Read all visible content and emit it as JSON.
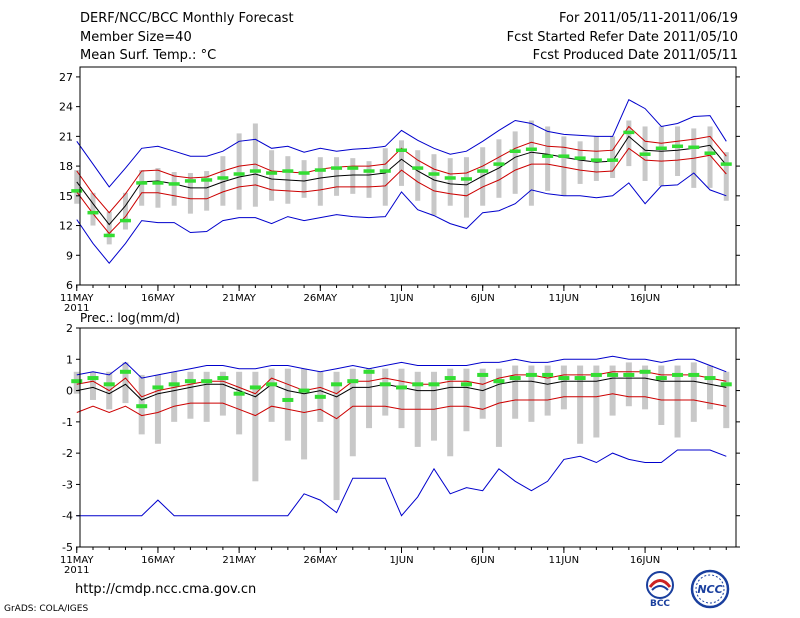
{
  "header": {
    "title": "DERF/NCC/BCC Monthly Forecast",
    "member_size": "Member Size=40",
    "forecast_period": "For 2011/05/11-2011/06/19",
    "started_date": "Fcst Started Refer Date 2011/05/10",
    "produced_date": "Fcst Produced Date 2011/05/11"
  },
  "footer": {
    "url": "http://cmdp.ncc.cma.gov.cn",
    "credit": "GrADS: COLA/IGES",
    "logo_left": "BCC",
    "logo_right": "NCC"
  },
  "colors": {
    "envelope": "#0000cc",
    "spread": "#cc0000",
    "mean": "#000000",
    "box": "#c8c8c8",
    "marker": "#33dd33"
  },
  "chart_data": [
    {
      "type": "line",
      "title": "Mean Surf. Temp.: °C",
      "x_tick_labels": [
        "11MAY",
        "16MAY",
        "21MAY",
        "26MAY",
        "1JUN",
        "6JUN",
        "11JUN",
        "16JUN"
      ],
      "x_tick_days": [
        1,
        6,
        11,
        16,
        21,
        26,
        31,
        36
      ],
      "year_label": "2011",
      "xlim": [
        0.2,
        40.6
      ],
      "ylim": [
        6,
        28
      ],
      "y_ticks": [
        6,
        9,
        12,
        15,
        18,
        21,
        24,
        27
      ],
      "series": [
        {
          "name": "max",
          "color_key": "envelope",
          "values": [
            20.5,
            18.2,
            15.9,
            17.8,
            19.8,
            20.0,
            19.5,
            19.0,
            19.0,
            19.5,
            20.5,
            20.7,
            19.8,
            20.0,
            19.4,
            19.8,
            19.5,
            19.7,
            19.8,
            20.0,
            21.6,
            20.6,
            19.8,
            19.2,
            19.5,
            20.5,
            21.6,
            22.6,
            22.3,
            21.5,
            21.2,
            21.1,
            21.0,
            21.0,
            24.7,
            23.8,
            22.0,
            22.3,
            23.0,
            23.1,
            20.5
          ]
        },
        {
          "name": "upper",
          "color_key": "spread",
          "values": [
            17.5,
            15.2,
            13.3,
            15.2,
            17.5,
            17.6,
            17.0,
            16.8,
            16.9,
            17.5,
            18.0,
            18.2,
            17.5,
            17.4,
            17.3,
            17.7,
            17.9,
            18.0,
            18.0,
            18.2,
            19.8,
            18.6,
            17.7,
            17.2,
            17.3,
            18.0,
            18.9,
            19.8,
            20.4,
            20.0,
            19.9,
            19.6,
            19.5,
            19.6,
            22.0,
            20.5,
            20.3,
            20.5,
            20.7,
            21.0,
            19.0
          ]
        },
        {
          "name": "mean",
          "color_key": "mean",
          "values": [
            16.4,
            14.2,
            12.1,
            14.0,
            16.4,
            16.5,
            16.2,
            15.8,
            15.8,
            16.4,
            16.9,
            17.2,
            16.7,
            16.6,
            16.5,
            16.8,
            17.0,
            17.1,
            17.1,
            17.3,
            18.7,
            17.5,
            16.6,
            16.2,
            16.1,
            17.0,
            17.8,
            18.9,
            19.4,
            19.2,
            18.9,
            18.6,
            18.4,
            18.5,
            21.0,
            19.6,
            19.5,
            19.6,
            19.8,
            20.1,
            18.1
          ]
        },
        {
          "name": "lower",
          "color_key": "spread",
          "values": [
            15.4,
            13.2,
            11.2,
            12.9,
            15.3,
            15.3,
            15.0,
            14.7,
            14.7,
            15.4,
            15.9,
            16.1,
            15.6,
            15.5,
            15.4,
            15.6,
            15.9,
            15.9,
            15.9,
            16.0,
            17.6,
            16.4,
            15.5,
            15.2,
            15.0,
            15.9,
            16.6,
            17.6,
            18.2,
            18.2,
            17.9,
            17.6,
            17.4,
            17.5,
            19.8,
            18.6,
            18.5,
            18.6,
            18.8,
            19.1,
            17.2
          ]
        },
        {
          "name": "min",
          "color_key": "envelope",
          "values": [
            12.6,
            10.2,
            8.2,
            10.2,
            12.5,
            12.3,
            12.3,
            11.3,
            11.4,
            12.5,
            12.8,
            12.8,
            12.2,
            12.9,
            12.5,
            12.8,
            13.1,
            12.9,
            12.8,
            12.9,
            15.4,
            13.6,
            13.0,
            12.2,
            11.7,
            13.3,
            13.5,
            14.2,
            15.6,
            15.2,
            15.0,
            15.0,
            14.8,
            15.0,
            16.3,
            14.2,
            16.0,
            16.1,
            17.3,
            15.6,
            15.0
          ]
        }
      ],
      "boxes": [
        [
          14.2,
          17.6
        ],
        [
          12.0,
          15.3
        ],
        [
          10.1,
          13.4
        ],
        [
          11.6,
          15.3
        ],
        [
          14.0,
          17.6
        ],
        [
          13.8,
          17.8
        ],
        [
          14.0,
          17.4
        ],
        [
          13.2,
          17.3
        ],
        [
          13.5,
          17.5
        ],
        [
          14.0,
          19.0
        ],
        [
          13.6,
          21.3
        ],
        [
          13.9,
          22.3
        ],
        [
          14.5,
          19.6
        ],
        [
          14.2,
          19.0
        ],
        [
          14.8,
          18.6
        ],
        [
          14.0,
          18.9
        ],
        [
          15.0,
          18.9
        ],
        [
          15.2,
          18.8
        ],
        [
          14.8,
          18.5
        ],
        [
          14.0,
          19.8
        ],
        [
          16.0,
          20.6
        ],
        [
          14.5,
          19.6
        ],
        [
          13.0,
          19.2
        ],
        [
          14.0,
          18.8
        ],
        [
          12.8,
          18.9
        ],
        [
          14.0,
          19.9
        ],
        [
          14.8,
          20.7
        ],
        [
          15.2,
          21.5
        ],
        [
          14.0,
          22.6
        ],
        [
          15.5,
          22.0
        ],
        [
          15.0,
          21.0
        ],
        [
          16.2,
          20.5
        ],
        [
          16.5,
          21.0
        ],
        [
          16.8,
          21.0
        ],
        [
          18.0,
          22.6
        ],
        [
          16.5,
          22.0
        ],
        [
          16.0,
          22.0
        ],
        [
          17.0,
          22.0
        ],
        [
          15.8,
          21.8
        ],
        [
          15.8,
          22.0
        ],
        [
          14.5,
          19.4
        ]
      ],
      "markers": [
        15.5,
        13.3,
        11.0,
        12.5,
        16.3,
        16.3,
        16.2,
        16.5,
        16.6,
        16.8,
        17.2,
        17.5,
        17.3,
        17.5,
        17.3,
        17.6,
        17.8,
        17.8,
        17.5,
        17.5,
        19.6,
        17.8,
        17.2,
        16.8,
        16.7,
        17.5,
        18.2,
        19.5,
        19.7,
        19.0,
        19.0,
        18.8,
        18.6,
        18.6,
        21.4,
        19.2,
        19.8,
        20.0,
        19.9,
        19.3,
        18.2
      ]
    },
    {
      "type": "line",
      "title": "Prec.: log(mm/d)",
      "x_tick_labels": [
        "11MAY",
        "16MAY",
        "21MAY",
        "26MAY",
        "1JUN",
        "6JUN",
        "11JUN",
        "16JUN"
      ],
      "x_tick_days": [
        1,
        6,
        11,
        16,
        21,
        26,
        31,
        36
      ],
      "year_label": "2011",
      "xlim": [
        0.2,
        40.6
      ],
      "ylim": [
        -5,
        2
      ],
      "y_ticks": [
        -5,
        -4,
        -3,
        -2,
        -1,
        0,
        1,
        2
      ],
      "series": [
        {
          "name": "max",
          "color_key": "envelope",
          "values": [
            0.5,
            0.6,
            0.5,
            0.9,
            0.4,
            0.5,
            0.6,
            0.7,
            0.8,
            0.8,
            0.7,
            0.7,
            0.8,
            0.8,
            0.7,
            0.6,
            0.7,
            0.8,
            0.7,
            0.8,
            0.9,
            0.8,
            0.8,
            0.8,
            0.8,
            0.9,
            0.9,
            1.0,
            0.9,
            0.9,
            1.0,
            1.0,
            1.0,
            1.1,
            1.0,
            1.0,
            0.9,
            1.0,
            1.0,
            0.8,
            0.6
          ]
        },
        {
          "name": "upper",
          "color_key": "spread",
          "values": [
            0.2,
            0.3,
            0.0,
            0.4,
            -0.2,
            0.0,
            0.1,
            0.2,
            0.3,
            0.3,
            0.1,
            -0.1,
            0.4,
            0.2,
            0.0,
            0.1,
            -0.1,
            0.3,
            0.3,
            0.4,
            0.3,
            0.2,
            0.2,
            0.3,
            0.3,
            0.2,
            0.4,
            0.5,
            0.5,
            0.4,
            0.5,
            0.5,
            0.5,
            0.6,
            0.6,
            0.6,
            0.5,
            0.5,
            0.5,
            0.4,
            0.3
          ]
        },
        {
          "name": "mean",
          "color_key": "mean",
          "values": [
            0.0,
            0.1,
            -0.1,
            0.2,
            -0.3,
            -0.1,
            0.0,
            0.1,
            0.2,
            0.2,
            0.0,
            -0.2,
            0.2,
            0.0,
            -0.1,
            0.0,
            -0.2,
            0.1,
            0.1,
            0.2,
            0.1,
            0.0,
            0.0,
            0.1,
            0.1,
            0.0,
            0.2,
            0.3,
            0.3,
            0.2,
            0.3,
            0.3,
            0.3,
            0.4,
            0.4,
            0.4,
            0.3,
            0.3,
            0.3,
            0.2,
            0.1
          ]
        },
        {
          "name": "lower",
          "color_key": "spread",
          "values": [
            -0.7,
            -0.5,
            -0.7,
            -0.5,
            -0.8,
            -0.7,
            -0.5,
            -0.4,
            -0.4,
            -0.4,
            -0.6,
            -0.8,
            -0.5,
            -0.6,
            -0.7,
            -0.6,
            -0.9,
            -0.5,
            -0.5,
            -0.5,
            -0.6,
            -0.6,
            -0.6,
            -0.5,
            -0.5,
            -0.6,
            -0.4,
            -0.3,
            -0.3,
            -0.3,
            -0.2,
            -0.2,
            -0.2,
            -0.1,
            -0.2,
            -0.2,
            -0.3,
            -0.3,
            -0.3,
            -0.4,
            -0.5
          ]
        },
        {
          "name": "min",
          "color_key": "envelope",
          "values": [
            -4.0,
            -4.0,
            -4.0,
            -4.0,
            -4.0,
            -3.5,
            -4.0,
            -4.0,
            -4.0,
            -4.0,
            -4.0,
            -4.0,
            -4.0,
            -4.0,
            -3.3,
            -3.5,
            -3.9,
            -2.8,
            -2.8,
            -2.8,
            -4.0,
            -3.4,
            -2.5,
            -3.3,
            -3.1,
            -3.2,
            -2.5,
            -2.9,
            -3.2,
            -2.9,
            -2.2,
            -2.1,
            -2.3,
            -2.0,
            -2.2,
            -2.3,
            -2.3,
            -1.9,
            -1.9,
            -1.9,
            -2.1
          ]
        },
        {
          "name": "",
          "color_key": "mean",
          "values": []
        }
      ],
      "boxes": [
        [
          -0.1,
          0.6
        ],
        [
          -0.3,
          0.6
        ],
        [
          -0.6,
          0.6
        ],
        [
          -0.4,
          0.9
        ],
        [
          -1.4,
          0.5
        ],
        [
          -1.7,
          0.5
        ],
        [
          -1.0,
          0.6
        ],
        [
          -0.9,
          0.6
        ],
        [
          -1.0,
          0.6
        ],
        [
          -0.8,
          0.6
        ],
        [
          -1.4,
          0.6
        ],
        [
          -2.9,
          0.6
        ],
        [
          -1.0,
          0.7
        ],
        [
          -1.6,
          0.7
        ],
        [
          -2.2,
          0.7
        ],
        [
          -1.0,
          0.6
        ],
        [
          -3.5,
          0.6
        ],
        [
          -2.1,
          0.7
        ],
        [
          -1.2,
          0.7
        ],
        [
          -0.8,
          0.7
        ],
        [
          -1.2,
          0.7
        ],
        [
          -1.8,
          0.6
        ],
        [
          -1.6,
          0.6
        ],
        [
          -2.1,
          0.7
        ],
        [
          -1.3,
          0.7
        ],
        [
          -0.9,
          0.7
        ],
        [
          -1.8,
          0.7
        ],
        [
          -0.9,
          0.8
        ],
        [
          -1.0,
          0.8
        ],
        [
          -0.8,
          0.8
        ],
        [
          -0.6,
          0.8
        ],
        [
          -1.7,
          0.8
        ],
        [
          -1.5,
          0.8
        ],
        [
          -0.8,
          0.8
        ],
        [
          -0.5,
          0.9
        ],
        [
          -0.6,
          0.8
        ],
        [
          -1.1,
          0.8
        ],
        [
          -1.5,
          0.8
        ],
        [
          -1.0,
          0.9
        ],
        [
          -0.6,
          0.8
        ],
        [
          -1.2,
          0.6
        ]
      ],
      "markers": [
        0.3,
        0.4,
        0.2,
        0.6,
        -0.5,
        0.1,
        0.2,
        0.3,
        0.3,
        0.4,
        -0.1,
        0.1,
        0.2,
        -0.3,
        0.0,
        -0.2,
        0.2,
        0.3,
        0.6,
        0.2,
        0.1,
        0.2,
        0.2,
        0.4,
        0.2,
        0.5,
        0.3,
        0.4,
        0.5,
        0.5,
        0.4,
        0.4,
        0.5,
        0.5,
        0.5,
        0.6,
        0.4,
        0.5,
        0.5,
        0.4,
        0.2
      ]
    }
  ]
}
